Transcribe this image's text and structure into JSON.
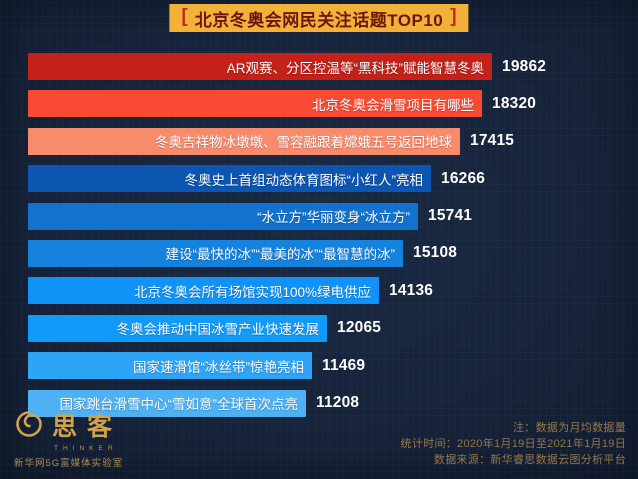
{
  "title": {
    "bracket_left": "[",
    "text": "北京冬奥会网民关注话题TOP10",
    "bracket_right": "]"
  },
  "chart_data": {
    "type": "bar",
    "orientation": "horizontal",
    "title": "北京冬奥会网民关注话题TOP10",
    "categories": [
      "AR观赛、分区控温等“黑科技”赋能智慧冬奥",
      "北京冬奥会滑雪项目有哪些",
      "冬奥吉祥物冰墩墩、雪容融跟着嫦娥五号返回地球",
      "冬奥史上首组动态体育图标“小红人”亮相",
      "“水立方”华丽变身“冰立方”",
      "建设“最快的冰”“最美的冰”“最智慧的冰”",
      "北京冬奥会所有场馆实现100%绿电供应",
      "冬奥会推动中国冰雪产业快速发展",
      "国家速滑馆“冰丝带”惊艳亮相",
      "国家跳台滑雪中心“雪如意”全球首次点亮"
    ],
    "values": [
      19862,
      18320,
      17415,
      16266,
      15741,
      15108,
      14136,
      12065,
      11469,
      11208
    ],
    "bar_colors": [
      "#c32119",
      "#f94b33",
      "#f98b6d",
      "#0c55b0",
      "#1272cd",
      "#1583de",
      "#1092f6",
      "#129af9",
      "#2ea4f6",
      "#4db1f3"
    ],
    "value_label_color": "#ffffff",
    "xlim": [
      0,
      20000
    ],
    "grid": false,
    "legend": "none",
    "value_labels_position": "right-of-bar"
  },
  "notes": {
    "line1": "注：数据为月均数据量",
    "line2": "统计时间：2020年1月19日至2021年1月19日",
    "line3": "数据来源：新华睿思数据云图分析平台"
  },
  "footer_logo": {
    "brand": "思客",
    "brand_sub": "THINKER",
    "caption": "新华网5G富媒体实验室"
  },
  "theme": {
    "background": "#16233a",
    "banner_bg": "#f2b23a",
    "banner_text": "#6d150e",
    "banner_bracket": "#bf2d1a",
    "note_text": "#96774a",
    "logo_gold": "#d2a24c"
  }
}
